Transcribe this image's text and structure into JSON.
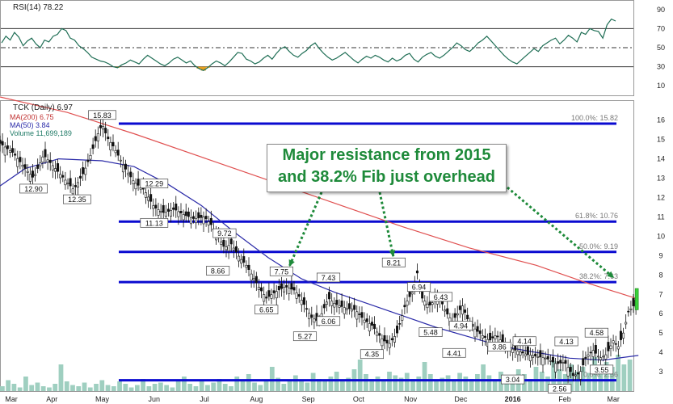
{
  "chart_data": {
    "type": "line",
    "rsi": {
      "title": "RSI(14) 78.22",
      "levels": [
        30,
        50,
        70
      ],
      "ticks": [
        90,
        70,
        50,
        30,
        10
      ],
      "ylim": [
        0,
        100
      ],
      "values": [
        55,
        62,
        58,
        66,
        61,
        52,
        57,
        60,
        54,
        50,
        58,
        56,
        62,
        64,
        70,
        68,
        60,
        58,
        52,
        49,
        45,
        40,
        38,
        36,
        35,
        33,
        30,
        29,
        32,
        34,
        37,
        35,
        33,
        38,
        42,
        39,
        36,
        33,
        31,
        34,
        38,
        40,
        37,
        34,
        36,
        31,
        28,
        26,
        29,
        33,
        36,
        34,
        31,
        35,
        40,
        45,
        44,
        38,
        36,
        33,
        35,
        39,
        42,
        38,
        44,
        49,
        51,
        46,
        42,
        40,
        44,
        47,
        52,
        55,
        49,
        44,
        40,
        37,
        39,
        42,
        45,
        41,
        37,
        34,
        38,
        41,
        39,
        42,
        40,
        37,
        35,
        39,
        36,
        38,
        42,
        44,
        38,
        35,
        40,
        43,
        45,
        41,
        39,
        42,
        46,
        50,
        55,
        52,
        48,
        46,
        50,
        55,
        58,
        62,
        57,
        52,
        47,
        42,
        38,
        35,
        33,
        37,
        41,
        45,
        49,
        46,
        52,
        55,
        58,
        60,
        54,
        58,
        63,
        60,
        56,
        66,
        64,
        70,
        68,
        67,
        60,
        74,
        80,
        78
      ]
    },
    "price": {
      "title": "TCK (Daily) 6.97",
      "legend": [
        {
          "label": "MA(200) 6.75",
          "color": "#e05050"
        },
        {
          "label": "MA(50) 3.84",
          "color": "#2a2aa8"
        },
        {
          "label": "Volume 11,699,189",
          "color": "#3aa58a"
        }
      ],
      "ylim": [
        2,
        17
      ],
      "y_ticks": [
        16,
        15,
        14,
        13,
        12,
        11,
        10,
        9,
        8,
        7,
        6,
        5,
        4,
        3
      ],
      "x_ticks": [
        "Mar",
        "Apr",
        "May",
        "Jun",
        "Jul",
        "Aug",
        "Sep",
        "Oct",
        "Nov",
        "Dec",
        "2016",
        "Feb",
        "Mar"
      ],
      "x_tick_days": [
        0,
        31,
        61,
        92,
        122,
        153,
        184,
        214,
        245,
        275,
        306,
        337,
        366
      ],
      "close_points": [
        [
          0,
          14.8
        ],
        [
          8,
          14.3
        ],
        [
          15,
          13.5
        ],
        [
          20,
          13.0
        ],
        [
          26,
          14.2
        ],
        [
          31,
          13.7
        ],
        [
          38,
          13.0
        ],
        [
          44,
          12.4
        ],
        [
          50,
          13.3
        ],
        [
          55,
          14.4
        ],
        [
          58,
          15.2
        ],
        [
          61,
          15.8
        ],
        [
          64,
          15.1
        ],
        [
          68,
          14.6
        ],
        [
          74,
          13.6
        ],
        [
          80,
          12.8
        ],
        [
          86,
          12.4
        ],
        [
          92,
          11.5
        ],
        [
          98,
          11.2
        ],
        [
          104,
          11.4
        ],
        [
          110,
          11.1
        ],
        [
          116,
          10.9
        ],
        [
          122,
          11.0
        ],
        [
          126,
          10.6
        ],
        [
          130,
          10.0
        ],
        [
          134,
          9.4
        ],
        [
          138,
          9.6
        ],
        [
          143,
          8.9
        ],
        [
          147,
          8.5
        ],
        [
          151,
          7.9
        ],
        [
          155,
          7.3
        ],
        [
          159,
          6.8
        ],
        [
          164,
          7.1
        ],
        [
          170,
          7.4
        ],
        [
          176,
          7.2
        ],
        [
          180,
          6.7
        ],
        [
          186,
          5.8
        ],
        [
          190,
          5.6
        ],
        [
          196,
          6.8
        ],
        [
          200,
          6.5
        ],
        [
          206,
          6.3
        ],
        [
          212,
          6.2
        ],
        [
          217,
          5.7
        ],
        [
          222,
          5.4
        ],
        [
          228,
          4.7
        ],
        [
          232,
          4.4
        ],
        [
          237,
          5.0
        ],
        [
          242,
          6.5
        ],
        [
          246,
          7.1
        ],
        [
          249,
          8.1
        ],
        [
          252,
          6.8
        ],
        [
          256,
          6.4
        ],
        [
          262,
          6.9
        ],
        [
          266,
          6.1
        ],
        [
          270,
          5.6
        ],
        [
          276,
          6.4
        ],
        [
          280,
          5.5
        ],
        [
          286,
          5.0
        ],
        [
          292,
          4.6
        ],
        [
          296,
          4.9
        ],
        [
          302,
          4.3
        ],
        [
          308,
          4.1
        ],
        [
          314,
          3.9
        ],
        [
          320,
          3.8
        ],
        [
          326,
          3.7
        ],
        [
          332,
          3.4
        ],
        [
          337,
          3.5
        ],
        [
          342,
          2.8
        ],
        [
          346,
          2.9
        ],
        [
          350,
          3.8
        ],
        [
          354,
          4.1
        ],
        [
          358,
          3.7
        ],
        [
          362,
          3.9
        ],
        [
          366,
          4.6
        ],
        [
          369,
          4.3
        ],
        [
          372,
          5.0
        ],
        [
          375,
          6.1
        ],
        [
          378,
          6.4
        ],
        [
          381,
          7.0
        ]
      ],
      "ma200_points": [
        [
          0,
          17.2
        ],
        [
          40,
          16.4
        ],
        [
          80,
          15.3
        ],
        [
          120,
          14.1
        ],
        [
          160,
          12.9
        ],
        [
          200,
          11.7
        ],
        [
          240,
          10.5
        ],
        [
          280,
          9.4
        ],
        [
          320,
          8.5
        ],
        [
          350,
          7.6
        ],
        [
          381,
          6.75
        ]
      ],
      "ma50_points": [
        [
          0,
          12.6
        ],
        [
          15,
          13.5
        ],
        [
          35,
          14.0
        ],
        [
          61,
          13.9
        ],
        [
          80,
          13.6
        ],
        [
          100,
          12.7
        ],
        [
          120,
          11.6
        ],
        [
          140,
          10.2
        ],
        [
          160,
          8.9
        ],
        [
          180,
          7.8
        ],
        [
          200,
          7.1
        ],
        [
          220,
          6.5
        ],
        [
          240,
          5.9
        ],
        [
          260,
          5.3
        ],
        [
          280,
          4.8
        ],
        [
          300,
          4.3
        ],
        [
          320,
          4.0
        ],
        [
          340,
          3.7
        ],
        [
          360,
          3.6
        ],
        [
          381,
          3.84
        ]
      ],
      "volume_ylim": [
        0,
        40000000
      ],
      "volume_samples": [
        4,
        9,
        6,
        3,
        12,
        5,
        7,
        4,
        3,
        6,
        22,
        8,
        5,
        4,
        7,
        3,
        6,
        9,
        5,
        4,
        8,
        6,
        3,
        5,
        10,
        4,
        6,
        7,
        5,
        3,
        9,
        12,
        6,
        4,
        8,
        5,
        7,
        10,
        6,
        4,
        12,
        8,
        14,
        7,
        5,
        9,
        20,
        11,
        6,
        8,
        13,
        9,
        7,
        15,
        10,
        8,
        12,
        16,
        9,
        11,
        18,
        26,
        14,
        10,
        12,
        9,
        16,
        13,
        11,
        15,
        10,
        12,
        24,
        14,
        9,
        11,
        13,
        8,
        15,
        12,
        10,
        14,
        22,
        13,
        9,
        16,
        12,
        11,
        18,
        14,
        10,
        20,
        16,
        12,
        25,
        18,
        14,
        22,
        16,
        20,
        15,
        28,
        18,
        24,
        20,
        30,
        22,
        26
      ],
      "fib_levels": [
        {
          "label": "100.0%: 15.82",
          "value": 15.82
        },
        {
          "label": "61.8%: 10.76",
          "value": 10.76
        },
        {
          "label": "50.0%: 9.19",
          "value": 9.19
        },
        {
          "label": "38.2%: 7.63",
          "value": 7.63
        },
        {
          "label": "0.0%: 2.56",
          "value": 2.56
        }
      ],
      "price_labels": [
        {
          "text": "15.83",
          "day": 61,
          "value": 15.83,
          "pos": "above"
        },
        {
          "text": "12.90",
          "day": 20,
          "value": 12.9,
          "pos": "below"
        },
        {
          "text": "12.35",
          "day": 46,
          "value": 12.35,
          "pos": "below"
        },
        {
          "text": "12.29",
          "day": 92,
          "value": 12.29,
          "pos": "above"
        },
        {
          "text": "11.13",
          "day": 92,
          "value": 11.13,
          "pos": "below"
        },
        {
          "text": "9.72",
          "day": 134,
          "value": 9.72,
          "pos": "above"
        },
        {
          "text": "8.66",
          "day": 130,
          "value": 8.66,
          "pos": "below"
        },
        {
          "text": "7.75",
          "day": 168,
          "value": 7.75,
          "pos": "above"
        },
        {
          "text": "6.65",
          "day": 159,
          "value": 6.65,
          "pos": "below"
        },
        {
          "text": "7.43",
          "day": 196,
          "value": 7.43,
          "pos": "above"
        },
        {
          "text": "6.06",
          "day": 196,
          "value": 6.06,
          "pos": "below"
        },
        {
          "text": "5.27",
          "day": 182,
          "value": 5.27,
          "pos": "below"
        },
        {
          "text": "4.35",
          "day": 222,
          "value": 4.35,
          "pos": "below"
        },
        {
          "text": "8.21",
          "day": 235,
          "value": 8.21,
          "pos": "above"
        },
        {
          "text": "6.94",
          "day": 250,
          "value": 6.94,
          "pos": "above"
        },
        {
          "text": "6.43",
          "day": 263,
          "value": 6.43,
          "pos": "above"
        },
        {
          "text": "5.48",
          "day": 257,
          "value": 5.48,
          "pos": "below"
        },
        {
          "text": "4.94",
          "day": 275,
          "value": 4.94,
          "pos": "above"
        },
        {
          "text": "4.41",
          "day": 271,
          "value": 4.41,
          "pos": "below"
        },
        {
          "text": "3.86",
          "day": 298,
          "value": 3.86,
          "pos": "above"
        },
        {
          "text": "4.14",
          "day": 313,
          "value": 4.14,
          "pos": "above"
        },
        {
          "text": "3.04",
          "day": 306,
          "value": 3.04,
          "pos": "below"
        },
        {
          "text": "4.13",
          "day": 338,
          "value": 4.13,
          "pos": "above"
        },
        {
          "text": "2.56",
          "day": 334,
          "value": 2.56,
          "pos": "below"
        },
        {
          "text": "4.58",
          "day": 356,
          "value": 4.58,
          "pos": "above"
        },
        {
          "text": "3.55",
          "day": 359,
          "value": 3.55,
          "pos": "below"
        }
      ],
      "annotation": {
        "line1": "Major resistance from 2015",
        "line2": "and 38.2% Fib just overhead",
        "color": "#1e8a3a"
      }
    }
  }
}
